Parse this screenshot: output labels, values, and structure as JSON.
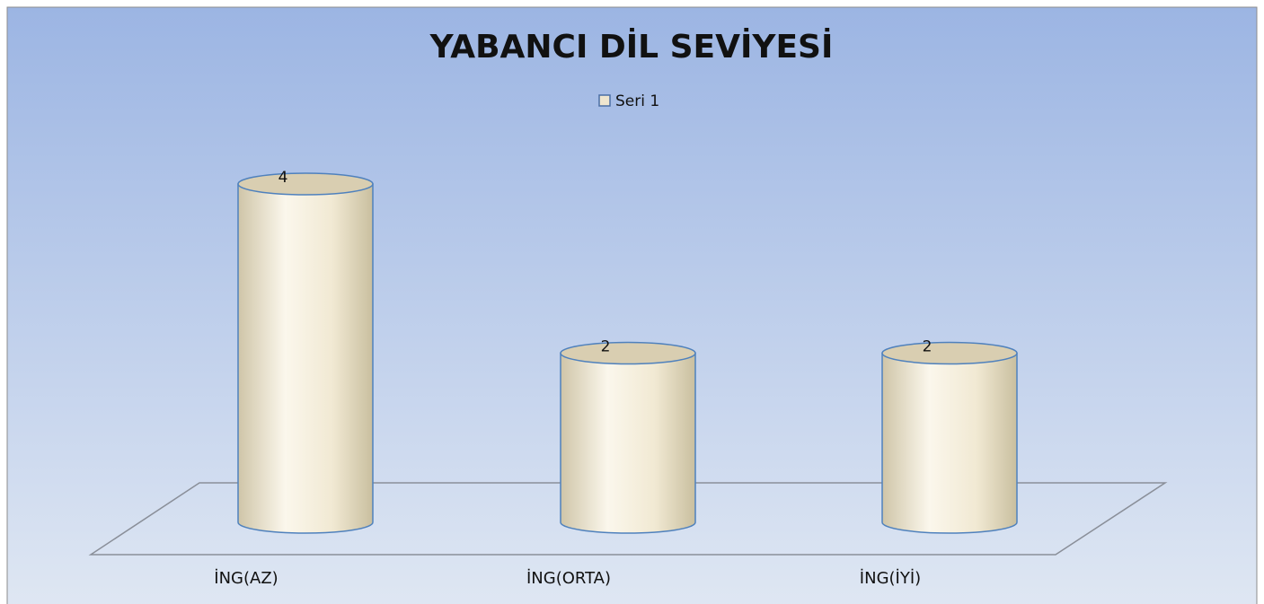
{
  "chart_data": {
    "type": "bar",
    "title": "YABANCI DİL SEVİYESİ",
    "categories": [
      "İNG(AZ)",
      "İNG(ORTA)",
      "İNG(İYİ)"
    ],
    "series": [
      {
        "name": "Seri 1",
        "color": "#efe6cf",
        "values": [
          4,
          2,
          2
        ]
      }
    ],
    "legend": "top"
  }
}
